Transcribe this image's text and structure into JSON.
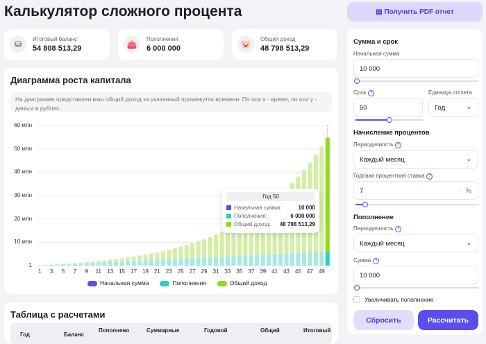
{
  "page_title": "Калькулятор сложного процента",
  "pdf_button": "Получить PDF отчет",
  "stats": [
    {
      "label": "Итоговый баланс",
      "value": "54 808 513,29",
      "icon": "coins-icon"
    },
    {
      "label": "Пополнения",
      "value": "6 000 000",
      "icon": "wallet-icon"
    },
    {
      "label": "Общий доход",
      "value": "48 798 513,29",
      "icon": "piggy-bank-icon"
    }
  ],
  "chart_card": {
    "title": "Диаграмма роста капитала",
    "description": "На диаграмме представлен ваш общий доход за указанный промежуток времени. По оси х - время, по оси у - деньги в рублях."
  },
  "tooltip": {
    "title": "Год 50",
    "rows": [
      {
        "label": "Начальная сумма:",
        "value": "10 000"
      },
      {
        "label": "Пополнения:",
        "value": "6 000 000"
      },
      {
        "label": "Общий доход:",
        "value": "48 798 513,29"
      }
    ]
  },
  "chart_data": {
    "type": "bar",
    "stacked": true,
    "x": [
      1,
      2,
      3,
      4,
      5,
      6,
      7,
      8,
      9,
      10,
      11,
      12,
      13,
      14,
      15,
      16,
      17,
      18,
      19,
      20,
      21,
      22,
      23,
      24,
      25,
      26,
      27,
      28,
      29,
      30,
      31,
      32,
      33,
      34,
      35,
      36,
      37,
      38,
      39,
      40,
      41,
      42,
      43,
      44,
      45,
      46,
      47,
      48,
      49,
      50
    ],
    "xtick_labels": [
      "1",
      "3",
      "5",
      "7",
      "9",
      "11",
      "13",
      "15",
      "17",
      "19",
      "21",
      "23",
      "25",
      "27",
      "29",
      "31",
      "33",
      "35",
      "37",
      "39",
      "41",
      "43",
      "45",
      "47",
      "49"
    ],
    "ytick_labels": [
      "1",
      "10 млн",
      "20 млн",
      "30 млн",
      "40 млн",
      "50 млн",
      "60 млн"
    ],
    "ylim": [
      0,
      60
    ],
    "yunit": "млн",
    "initial_mln": 0.01,
    "balance_mln": [
      0.1347,
      0.2683,
      0.4117,
      0.5653,
      0.7301,
      0.9068,
      1.0963,
      1.2995,
      1.5173,
      1.7509,
      2.0015,
      2.2701,
      2.5581,
      2.8669,
      3.1981,
      3.5532,
      3.934,
      4.3423,
      4.7801,
      5.2496,
      5.753,
      6.2928,
      6.8717,
      7.4924,
      8.1579,
      8.8715,
      9.6368,
      10.4574,
      11.3372,
      12.2807,
      13.2924,
      14.3773,
      15.5405,
      16.7879,
      18.1254,
      19.5595,
      21.0974,
      22.7465,
      24.5147,
      26.4108,
      28.4439,
      30.624,
      32.9617,
      35.4684,
      38.1563,
      41.0385,
      44.129,
      47.443,
      50.9966,
      54.8085
    ],
    "series": [
      {
        "name": "Начальная сумма",
        "color": "#5b4ef0"
      },
      {
        "name": "Пополнения",
        "color": "#2ecfc4"
      },
      {
        "name": "Общий доход",
        "color": "#8fdc1a"
      }
    ],
    "legend": "bottom",
    "highlighted": 50
  },
  "table": {
    "title": "Таблица с расчетами",
    "headers": [
      "Год",
      "Баланс",
      "Пополнено",
      "Суммарные",
      "Годовой",
      "Общий",
      "Итоговый"
    ]
  },
  "form": {
    "sum_section": "Сумма и срок",
    "initial_label": "Начальная сумма",
    "initial_value": "10 000",
    "term_label": "Срок",
    "term_value": "50",
    "unit_label": "Единица отсчета",
    "unit_value": "Год",
    "interest_section": "Начисление процентов",
    "interest_period_label": "Периодичность",
    "interest_period_value": "Каждый месяц",
    "rate_label": "Годовая процентная ставка",
    "rate_value": "7",
    "rate_suffix": "%",
    "topup_section": "Пополнение",
    "topup_period_label": "Периодичность",
    "topup_period_value": "Каждый месяц",
    "topup_sum_label": "Сумма",
    "topup_sum_value": "10 000",
    "increase_label": "Увеличивать пополнение",
    "reset": "Сбросить",
    "calculate": "Рассчитать",
    "sliders": {
      "initial": 0.0,
      "term": 0.5,
      "rate": 0.07,
      "topup": 0.0
    }
  }
}
